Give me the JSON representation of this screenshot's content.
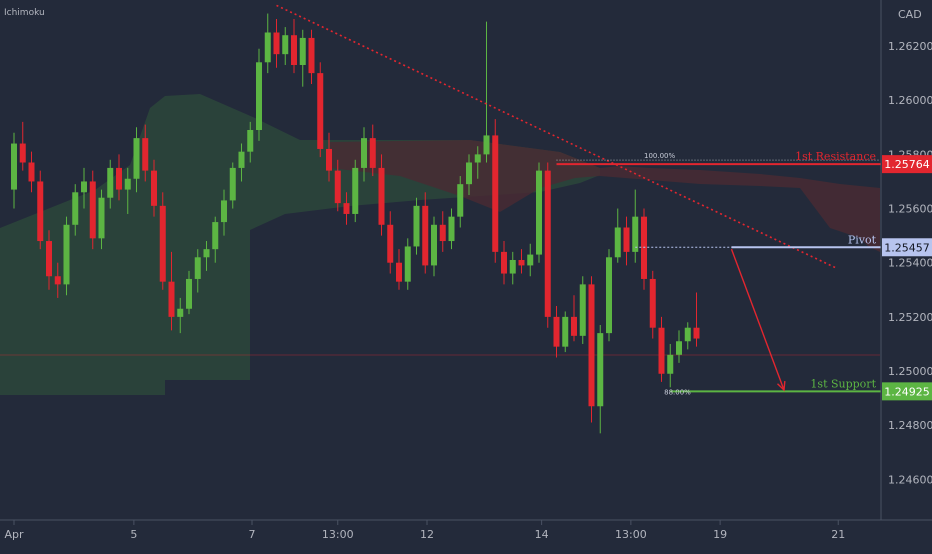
{
  "header": {
    "indicator_label": "Ichimoku",
    "currency_label": "CAD"
  },
  "colors": {
    "background": "#232a3a",
    "up": "#5cb543",
    "down": "#e2262f",
    "cloud_green": "#2d4b3b",
    "cloud_red": "#4a2a33",
    "trendline": "#e2262f",
    "pivot": "#b7c4ef",
    "resistance": "#e2262f",
    "support": "#5cb543",
    "axis_text": "#b2b5be"
  },
  "chart_data": {
    "type": "candlestick",
    "symbol_currency": "CAD",
    "indicator": "Ichimoku",
    "ylim": [
      1.2445,
      1.2637
    ],
    "y_ticks": [
      "1.26200",
      "1.26000",
      "1.25800",
      "1.25600",
      "1.25400",
      "1.25200",
      "1.25000",
      "1.24800",
      "1.24600"
    ],
    "x_ticks": [
      "Apr",
      "5",
      "7",
      "13:00",
      "12",
      "14",
      "13:00",
      "19",
      "21"
    ],
    "ohlc": [
      [
        1.2567,
        1.2588,
        1.256,
        1.2584
      ],
      [
        1.2584,
        1.2592,
        1.2574,
        1.2577
      ],
      [
        1.2577,
        1.2581,
        1.2566,
        1.257
      ],
      [
        1.257,
        1.2574,
        1.2545,
        1.2548
      ],
      [
        1.2548,
        1.2552,
        1.253,
        1.2535
      ],
      [
        1.2535,
        1.254,
        1.2527,
        1.2532
      ],
      [
        1.2532,
        1.2557,
        1.2528,
        1.2554
      ],
      [
        1.2554,
        1.2569,
        1.255,
        1.2566
      ],
      [
        1.2566,
        1.2575,
        1.256,
        1.257
      ],
      [
        1.257,
        1.2574,
        1.2545,
        1.2549
      ],
      [
        1.2549,
        1.2567,
        1.2545,
        1.2564
      ],
      [
        1.2564,
        1.2578,
        1.256,
        1.2575
      ],
      [
        1.2575,
        1.258,
        1.2563,
        1.2567
      ],
      [
        1.2567,
        1.2575,
        1.2558,
        1.2571
      ],
      [
        1.2571,
        1.259,
        1.2566,
        1.2586
      ],
      [
        1.2586,
        1.2591,
        1.257,
        1.2574
      ],
      [
        1.2574,
        1.2578,
        1.2557,
        1.2561
      ],
      [
        1.2561,
        1.2566,
        1.253,
        1.2533
      ],
      [
        1.2533,
        1.2544,
        1.2515,
        1.252
      ],
      [
        1.252,
        1.2527,
        1.2514,
        1.2523
      ],
      [
        1.2523,
        1.2537,
        1.2521,
        1.2534
      ],
      [
        1.2534,
        1.2545,
        1.2529,
        1.2542
      ],
      [
        1.2542,
        1.2548,
        1.2537,
        1.2545
      ],
      [
        1.2545,
        1.2557,
        1.254,
        1.2555
      ],
      [
        1.2555,
        1.2567,
        1.255,
        1.2563
      ],
      [
        1.2563,
        1.2577,
        1.256,
        1.2575
      ],
      [
        1.2575,
        1.2584,
        1.257,
        1.2581
      ],
      [
        1.2581,
        1.2592,
        1.2577,
        1.2589
      ],
      [
        1.2589,
        1.2619,
        1.2585,
        1.2614
      ],
      [
        1.2614,
        1.2632,
        1.261,
        1.2625
      ],
      [
        1.2625,
        1.263,
        1.2612,
        1.2617
      ],
      [
        1.2617,
        1.2627,
        1.2613,
        1.2624
      ],
      [
        1.2624,
        1.263,
        1.261,
        1.2613
      ],
      [
        1.2613,
        1.2626,
        1.2605,
        1.2623
      ],
      [
        1.2623,
        1.2626,
        1.2606,
        1.261
      ],
      [
        1.261,
        1.2614,
        1.2579,
        1.2582
      ],
      [
        1.2582,
        1.2588,
        1.257,
        1.2574
      ],
      [
        1.2574,
        1.2578,
        1.2559,
        1.2562
      ],
      [
        1.2562,
        1.2566,
        1.2554,
        1.2558
      ],
      [
        1.2558,
        1.2578,
        1.2555,
        1.2575
      ],
      [
        1.2575,
        1.259,
        1.257,
        1.2586
      ],
      [
        1.2586,
        1.2591,
        1.2572,
        1.2575
      ],
      [
        1.2575,
        1.258,
        1.255,
        1.2554
      ],
      [
        1.2554,
        1.2559,
        1.2536,
        1.254
      ],
      [
        1.254,
        1.2545,
        1.253,
        1.2533
      ],
      [
        1.2533,
        1.2549,
        1.253,
        1.2546
      ],
      [
        1.2546,
        1.2564,
        1.2543,
        1.2561
      ],
      [
        1.2561,
        1.2566,
        1.2536,
        1.2539
      ],
      [
        1.2539,
        1.2557,
        1.2535,
        1.2554
      ],
      [
        1.2554,
        1.2559,
        1.2544,
        1.2548
      ],
      [
        1.2548,
        1.256,
        1.2545,
        1.2557
      ],
      [
        1.2557,
        1.2572,
        1.2553,
        1.2569
      ],
      [
        1.2569,
        1.258,
        1.2565,
        1.2577
      ],
      [
        1.2577,
        1.2583,
        1.2571,
        1.258
      ],
      [
        1.258,
        1.2629,
        1.2577,
        1.2587
      ],
      [
        1.2587,
        1.2593,
        1.254,
        1.2544
      ],
      [
        1.2544,
        1.2548,
        1.2532,
        1.2536
      ],
      [
        1.2536,
        1.2544,
        1.2532,
        1.2541
      ],
      [
        1.2541,
        1.2545,
        1.2536,
        1.2539
      ],
      [
        1.2539,
        1.2547,
        1.2535,
        1.2543
      ],
      [
        1.2543,
        1.2577,
        1.254,
        1.2574
      ],
      [
        1.2574,
        1.2577,
        1.2516,
        1.252
      ],
      [
        1.252,
        1.2524,
        1.2505,
        1.2509
      ],
      [
        1.2509,
        1.2522,
        1.2507,
        1.252
      ],
      [
        1.252,
        1.2528,
        1.2511,
        1.2513
      ],
      [
        1.2513,
        1.2535,
        1.251,
        1.2532
      ],
      [
        1.2532,
        1.2535,
        1.2481,
        1.2487
      ],
      [
        1.2487,
        1.2517,
        1.2477,
        1.2514
      ],
      [
        1.2514,
        1.2545,
        1.2511,
        1.2542
      ],
      [
        1.2542,
        1.256,
        1.254,
        1.2553
      ],
      [
        1.2553,
        1.2557,
        1.2539,
        1.2544
      ],
      [
        1.2544,
        1.2567,
        1.254,
        1.2557
      ],
      [
        1.2557,
        1.256,
        1.253,
        1.2534
      ],
      [
        1.2534,
        1.2537,
        1.2512,
        1.2516
      ],
      [
        1.2516,
        1.252,
        1.2496,
        1.2499
      ],
      [
        1.2499,
        1.251,
        1.2494,
        1.2506
      ],
      [
        1.2506,
        1.2515,
        1.2503,
        1.2511
      ],
      [
        1.2511,
        1.2518,
        1.2508,
        1.2516
      ],
      [
        1.2516,
        1.2529,
        1.2509,
        1.2512
      ]
    ],
    "price_lines": [
      {
        "name": "resistance",
        "label": "1st Resistance",
        "value": 1.25764,
        "value_label": "1.25764",
        "fib_label": "100.00%",
        "x_start_index": 62
      },
      {
        "name": "pivot",
        "label": "Pivot",
        "value": 1.25457,
        "value_label": "1.25457",
        "x_start_index": 71
      },
      {
        "name": "support",
        "label": "1st Support",
        "value": 1.24925,
        "value_label": "1.24925",
        "fib_label": "88.00%",
        "x_start_index": 75
      }
    ],
    "trendline": {
      "from": [
        30,
        1.2635
      ],
      "to": [
        94,
        1.2538
      ]
    },
    "projection_arrow": {
      "from": [
        82,
        1.2545
      ],
      "to": [
        88,
        1.2493
      ]
    }
  }
}
